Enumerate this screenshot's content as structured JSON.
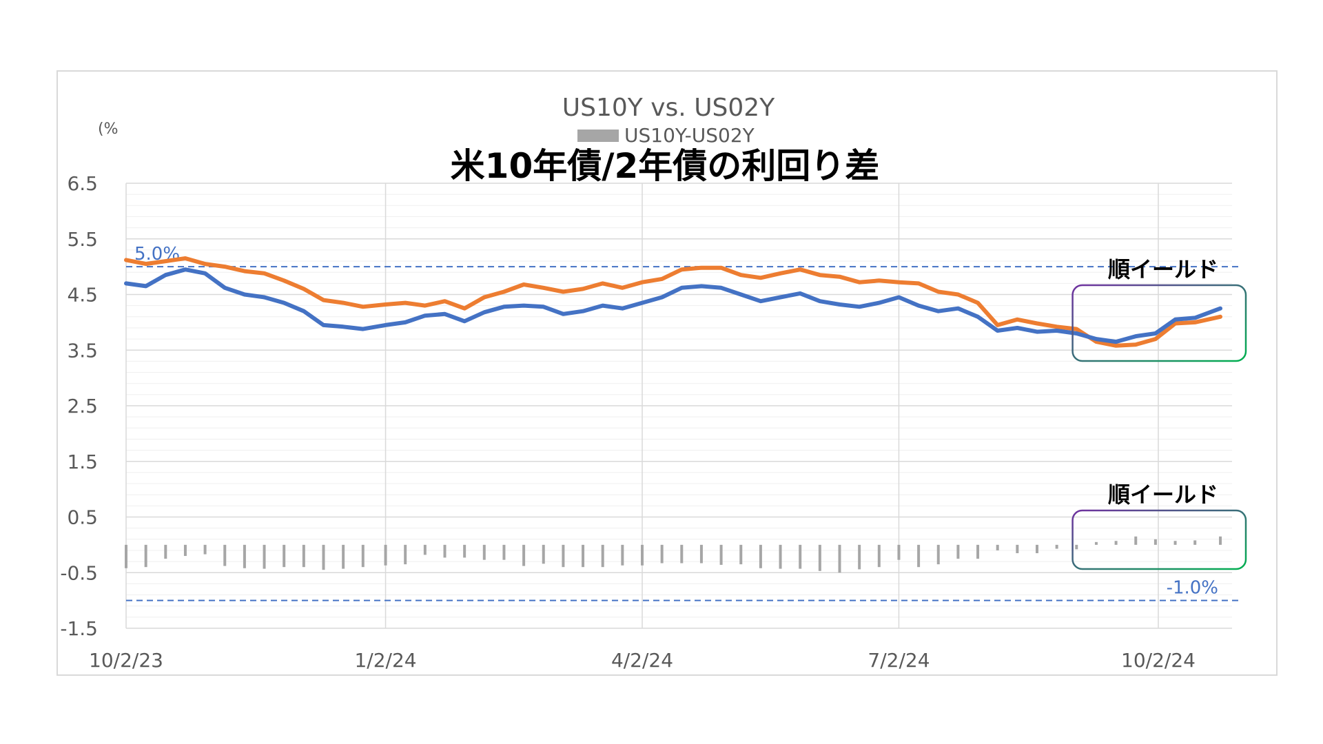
{
  "chart_data": {
    "type": "line",
    "title": "US10Y vs. US02Y",
    "overlay_title": "米10年債/2年債の利回り差",
    "unit_label": "(%",
    "legend": [
      {
        "label": "US10Y-US02Y",
        "color": "#a6a6a6"
      }
    ],
    "y_ticks": [
      "6.5",
      "5.5",
      "4.5",
      "3.5",
      "2.5",
      "1.5",
      "0.5",
      "-0.5",
      "-1.5"
    ],
    "x_ticks": [
      "10/2/23",
      "1/2/24",
      "4/2/24",
      "7/2/24",
      "10/2/24"
    ],
    "x_range": [
      "2023-10-02",
      "2024-10-24"
    ],
    "ylim": [
      -1.5,
      6.5
    ],
    "grid": true,
    "colors": {
      "us10y": "#4472c4",
      "us02y": "#ed7d31",
      "spread": "#a6a6a6",
      "ref_line": "#4472c4",
      "box1": "#7030a0",
      "box2": "#00b050"
    },
    "series": [
      {
        "key": "us10y",
        "dates": [
          "2023-10-02",
          "2023-10-09",
          "2023-10-16",
          "2023-10-23",
          "2023-10-30",
          "2023-11-06",
          "2023-11-13",
          "2023-11-20",
          "2023-11-27",
          "2023-12-04",
          "2023-12-11",
          "2023-12-18",
          "2023-12-25",
          "2024-01-02",
          "2024-01-09",
          "2024-01-16",
          "2024-01-23",
          "2024-01-30",
          "2024-02-06",
          "2024-02-13",
          "2024-02-20",
          "2024-02-27",
          "2024-03-05",
          "2024-03-12",
          "2024-03-19",
          "2024-03-26",
          "2024-04-02",
          "2024-04-09",
          "2024-04-16",
          "2024-04-23",
          "2024-04-30",
          "2024-05-07",
          "2024-05-14",
          "2024-05-21",
          "2024-05-28",
          "2024-06-04",
          "2024-06-11",
          "2024-06-18",
          "2024-06-25",
          "2024-07-02",
          "2024-07-09",
          "2024-07-16",
          "2024-07-23",
          "2024-07-30",
          "2024-08-06",
          "2024-08-13",
          "2024-08-20",
          "2024-08-27",
          "2024-09-03",
          "2024-09-10",
          "2024-09-17",
          "2024-09-24",
          "2024-10-01",
          "2024-10-08",
          "2024-10-15",
          "2024-10-24"
        ],
        "values": [
          4.7,
          4.65,
          4.85,
          4.95,
          4.88,
          4.62,
          4.5,
          4.45,
          4.35,
          4.2,
          3.95,
          3.92,
          3.88,
          3.95,
          4.0,
          4.12,
          4.15,
          4.02,
          4.18,
          4.28,
          4.3,
          4.28,
          4.15,
          4.2,
          4.3,
          4.25,
          4.35,
          4.45,
          4.62,
          4.65,
          4.62,
          4.5,
          4.38,
          4.45,
          4.52,
          4.38,
          4.32,
          4.28,
          4.35,
          4.45,
          4.3,
          4.2,
          4.25,
          4.1,
          3.85,
          3.9,
          3.83,
          3.85,
          3.8,
          3.7,
          3.65,
          3.75,
          3.8,
          4.05,
          4.08,
          4.25
        ]
      },
      {
        "key": "us02y",
        "dates": [
          "2023-10-02",
          "2023-10-09",
          "2023-10-16",
          "2023-10-23",
          "2023-10-30",
          "2023-11-06",
          "2023-11-13",
          "2023-11-20",
          "2023-11-27",
          "2023-12-04",
          "2023-12-11",
          "2023-12-18",
          "2023-12-25",
          "2024-01-02",
          "2024-01-09",
          "2024-01-16",
          "2024-01-23",
          "2024-01-30",
          "2024-02-06",
          "2024-02-13",
          "2024-02-20",
          "2024-02-27",
          "2024-03-05",
          "2024-03-12",
          "2024-03-19",
          "2024-03-26",
          "2024-04-02",
          "2024-04-09",
          "2024-04-16",
          "2024-04-23",
          "2024-04-30",
          "2024-05-07",
          "2024-05-14",
          "2024-05-21",
          "2024-05-28",
          "2024-06-04",
          "2024-06-11",
          "2024-06-18",
          "2024-06-25",
          "2024-07-02",
          "2024-07-09",
          "2024-07-16",
          "2024-07-23",
          "2024-07-30",
          "2024-08-06",
          "2024-08-13",
          "2024-08-20",
          "2024-08-27",
          "2024-09-03",
          "2024-09-10",
          "2024-09-17",
          "2024-09-24",
          "2024-10-01",
          "2024-10-08",
          "2024-10-15",
          "2024-10-24"
        ],
        "values": [
          5.12,
          5.05,
          5.1,
          5.15,
          5.05,
          5.0,
          4.92,
          4.88,
          4.75,
          4.6,
          4.4,
          4.35,
          4.28,
          4.32,
          4.35,
          4.3,
          4.38,
          4.25,
          4.45,
          4.55,
          4.68,
          4.62,
          4.55,
          4.6,
          4.7,
          4.62,
          4.72,
          4.78,
          4.95,
          4.98,
          4.98,
          4.85,
          4.8,
          4.88,
          4.95,
          4.85,
          4.82,
          4.72,
          4.75,
          4.72,
          4.7,
          4.55,
          4.5,
          4.35,
          3.95,
          4.05,
          3.98,
          3.92,
          3.88,
          3.65,
          3.58,
          3.6,
          3.7,
          3.98,
          4.0,
          4.1
        ]
      }
    ],
    "spread": {
      "dates": [
        "2023-10-02",
        "2023-10-09",
        "2023-10-16",
        "2023-10-23",
        "2023-10-30",
        "2023-11-06",
        "2023-11-13",
        "2023-11-20",
        "2023-11-27",
        "2023-12-04",
        "2023-12-11",
        "2023-12-18",
        "2023-12-25",
        "2024-01-02",
        "2024-01-09",
        "2024-01-16",
        "2024-01-23",
        "2024-01-30",
        "2024-02-06",
        "2024-02-13",
        "2024-02-20",
        "2024-02-27",
        "2024-03-05",
        "2024-03-12",
        "2024-03-19",
        "2024-03-26",
        "2024-04-02",
        "2024-04-09",
        "2024-04-16",
        "2024-04-23",
        "2024-04-30",
        "2024-05-07",
        "2024-05-14",
        "2024-05-21",
        "2024-05-28",
        "2024-06-04",
        "2024-06-11",
        "2024-06-18",
        "2024-06-25",
        "2024-07-02",
        "2024-07-09",
        "2024-07-16",
        "2024-07-23",
        "2024-07-30",
        "2024-08-06",
        "2024-08-13",
        "2024-08-20",
        "2024-08-27",
        "2024-09-03",
        "2024-09-10",
        "2024-09-17",
        "2024-09-24",
        "2024-10-01",
        "2024-10-08",
        "2024-10-15",
        "2024-10-24"
      ],
      "values": [
        -0.42,
        -0.4,
        -0.25,
        -0.2,
        -0.17,
        -0.38,
        -0.42,
        -0.43,
        -0.4,
        -0.4,
        -0.45,
        -0.43,
        -0.4,
        -0.37,
        -0.35,
        -0.18,
        -0.23,
        -0.23,
        -0.27,
        -0.27,
        -0.38,
        -0.34,
        -0.4,
        -0.4,
        -0.4,
        -0.37,
        -0.37,
        -0.33,
        -0.33,
        -0.33,
        -0.36,
        -0.35,
        -0.42,
        -0.43,
        -0.43,
        -0.47,
        -0.5,
        -0.44,
        -0.4,
        -0.27,
        -0.4,
        -0.35,
        -0.25,
        -0.25,
        -0.1,
        -0.15,
        -0.15,
        -0.07,
        -0.08,
        0.05,
        0.07,
        0.15,
        0.1,
        0.07,
        0.08,
        0.15
      ]
    },
    "reference_lines": [
      {
        "value": 5.0,
        "label": "5.0%"
      },
      {
        "value": -1.0,
        "label": "-1.0%"
      }
    ],
    "annotations": [
      {
        "key": "upper",
        "label": "順イールド"
      },
      {
        "key": "lower",
        "label": "順イールド"
      }
    ]
  }
}
